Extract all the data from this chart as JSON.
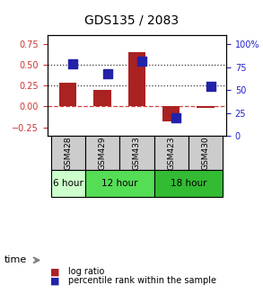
{
  "title": "GDS135 / 2083",
  "samples": [
    "GSM428",
    "GSM429",
    "GSM433",
    "GSM423",
    "GSM430"
  ],
  "log_ratios": [
    0.28,
    0.2,
    0.65,
    -0.18,
    -0.02
  ],
  "percentile_ranks": [
    79,
    68,
    82,
    20,
    54
  ],
  "ylim_left": [
    -0.35,
    0.85
  ],
  "ylim_right": [
    0,
    110
  ],
  "yticks_left": [
    -0.25,
    0.0,
    0.25,
    0.5,
    0.75
  ],
  "yticks_right": [
    0,
    25,
    50,
    75,
    100
  ],
  "hlines": [
    0.0,
    0.25,
    0.5
  ],
  "hline_styles": [
    "dashed",
    "dotted",
    "dotted"
  ],
  "hline_colors": [
    "#cc4444",
    "#333333",
    "#333333"
  ],
  "bar_color": "#aa2222",
  "dot_color": "#2222aa",
  "bar_width": 0.5,
  "dot_size": 55,
  "sample_bg_color": "#cccccc",
  "time_bg_colors": [
    "#ccffcc",
    "#55dd55",
    "#33bb33"
  ],
  "left_tick_color": "#cc3333",
  "right_tick_color": "#2222cc",
  "time_spans": [
    [
      0,
      0,
      "6 hour"
    ],
    [
      1,
      2,
      "12 hour"
    ],
    [
      3,
      4,
      "18 hour"
    ]
  ]
}
